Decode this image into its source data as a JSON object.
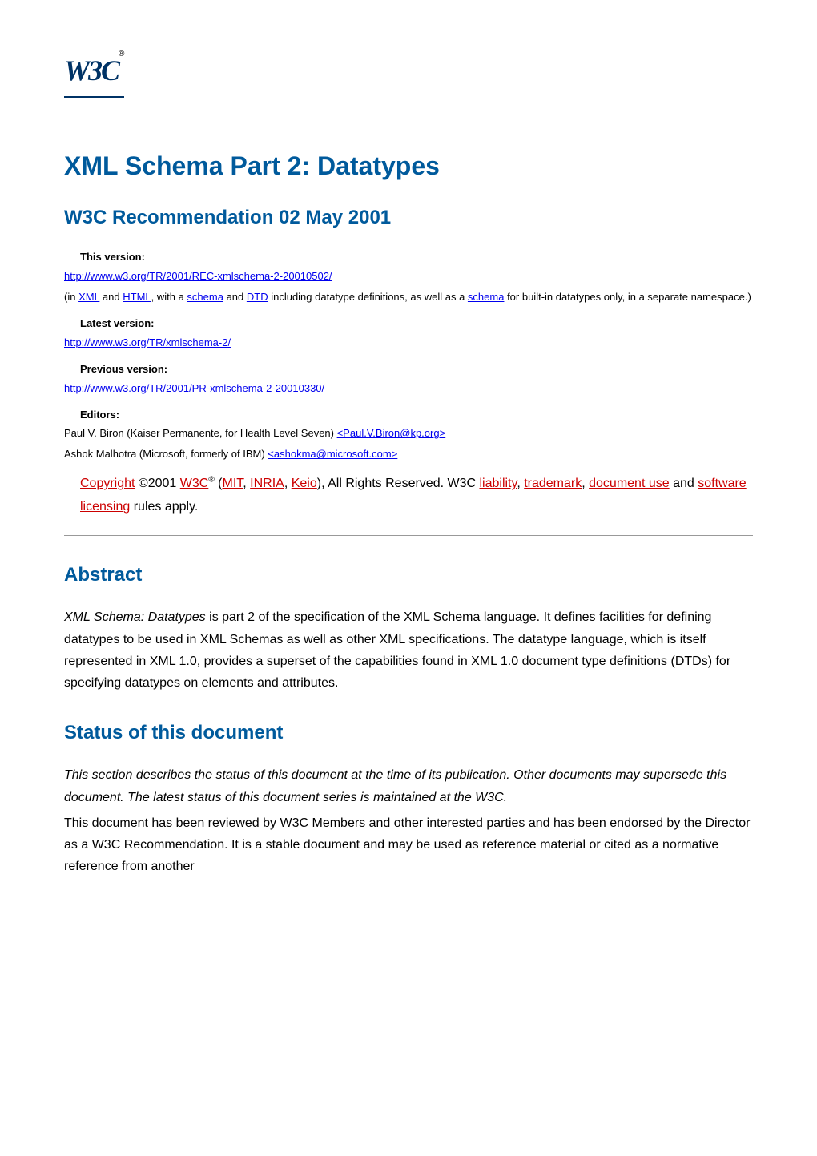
{
  "logo": {
    "text": "W3C",
    "reg": "®"
  },
  "title": "XML Schema Part 2: Datatypes",
  "subtitle": "W3C Recommendation 02 May 2001",
  "versions": {
    "this_label": "This version:",
    "this_url": "http://www.w3.org/TR/2001/REC-xmlschema-2-20010502/",
    "this_note_pre": "(in ",
    "this_note_xml": "XML",
    "this_note_and": " and ",
    "this_note_html": "HTML",
    "this_note_mid1": ", with a ",
    "this_note_schema1": "schema",
    "this_note_mid2": " and ",
    "this_note_dtd": "DTD",
    "this_note_mid3": " including datatype definitions, as well as a ",
    "this_note_schema2": "schema",
    "this_note_post": " for built-in datatypes only, in a separate namespace.)",
    "latest_label": "Latest version:",
    "latest_url": "http://www.w3.org/TR/xmlschema-2/ ",
    "prev_label": "Previous version:",
    "prev_url": "http://www.w3.org/TR/2001/PR-xmlschema-2-20010330/ "
  },
  "editors": {
    "label": "Editors:",
    "ed1_name": "Paul V. Biron (Kaiser Permanente, for Health Level Seven) ",
    "ed1_mail": "<Paul.V.Biron@kp.org>",
    "ed2_name": "Ashok Malhotra (Microsoft, formerly of IBM) ",
    "ed2_mail": "<ashokma@microsoft.com>"
  },
  "copyright": {
    "copyright_link": "Copyright",
    "year": " ©2001 ",
    "w3c": "W3C",
    "reg": "®",
    "paren_open": " (",
    "mit": "MIT",
    "comma1": ", ",
    "inria": "INRIA",
    "comma2": ", ",
    "keio": "Keio",
    "paren_close": "), All Rights Reserved. W3C ",
    "liability": "liability",
    "comma3": ", ",
    "trademark": "trademark",
    "comma4": ", ",
    "docuse": "document use",
    "and": " and ",
    "software": "software licensing",
    "end": " rules apply."
  },
  "abstract": {
    "heading": "Abstract",
    "text_em": "XML Schema: Datatypes",
    "text_rest": " is part 2 of the specification of the XML Schema language. It defines facilities for defining datatypes to be used in XML Schemas as well as other XML specifications. The datatype language, which is itself represented in XML 1.0, provides a superset of the capabilities found in XML 1.0 document type definitions (DTDs) for specifying datatypes on elements and attributes."
  },
  "status": {
    "heading": "Status of this document",
    "para1_em": "This section describes the status of this document at the time of its publication. Other documents may supersede this document. The latest status of this document series is maintained at the W3C.",
    "para2": "This document has been reviewed by W3C Members and other interested parties and has been endorsed by the Director as a W3C Recommendation. It is a stable document and may be used as reference material or cited as a normative reference from another"
  },
  "colors": {
    "heading_color": "#005a9c",
    "link_color": "#0000ee",
    "link_visited": "#cc0000",
    "text_color": "#000000",
    "logo_color": "#003366",
    "hr_color": "#999999",
    "background": "#ffffff"
  }
}
